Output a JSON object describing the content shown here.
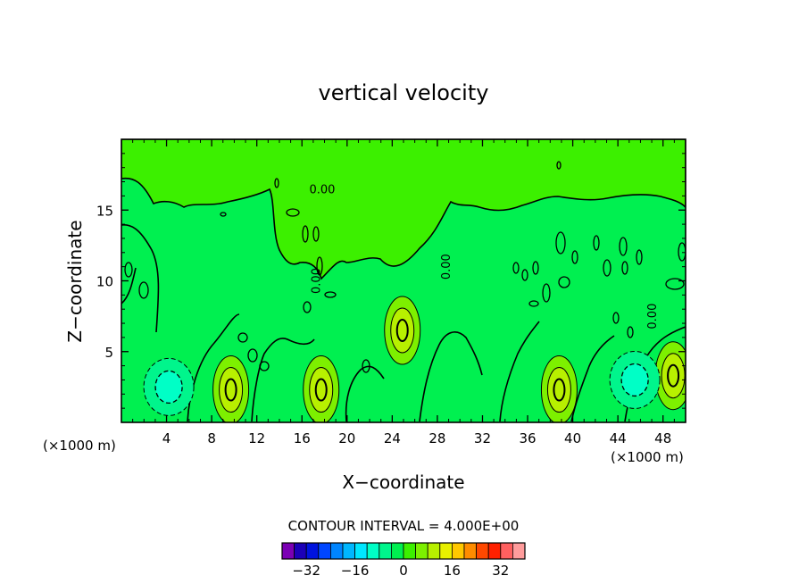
{
  "chart_data": {
    "type": "contour",
    "title": "vertical velocity",
    "xlabel": "X−coordinate",
    "ylabel": "Z−coordinate",
    "x_unit_left": "(×1000 m)",
    "x_unit_right": "(×1000 m)",
    "xlim": [
      0,
      50
    ],
    "ylim": [
      0,
      20
    ],
    "x_ticks": [
      4,
      8,
      12,
      16,
      20,
      24,
      28,
      32,
      36,
      40,
      44,
      48
    ],
    "x_tick_labels": [
      "4",
      "8",
      "12",
      "16",
      "20",
      "24",
      "28",
      "32",
      "36",
      "40",
      "44",
      "48"
    ],
    "y_ticks": [
      5,
      10,
      15
    ],
    "y_tick_labels": [
      "5",
      "10",
      "15"
    ],
    "contour_labels": [
      {
        "text": "0.00",
        "x": 17.8,
        "z": 16.5
      },
      {
        "text": "0.00",
        "x": 28.7,
        "z": 11.0
      },
      {
        "text": "0.00",
        "x": 17.2,
        "z": 10.0
      },
      {
        "text": "0.00",
        "x": 47.0,
        "z": 7.5
      }
    ],
    "contour_interval_text": "CONTOUR INTERVAL = 4.000E+00",
    "colorbar": {
      "levels": [
        -36,
        -32,
        -28,
        -24,
        -20,
        -16,
        -12,
        -8,
        -4,
        0,
        4,
        8,
        12,
        16,
        20,
        24,
        28,
        32,
        36
      ],
      "colors": [
        "#7b00b4",
        "#1c00b8",
        "#0013df",
        "#0046ff",
        "#0085ff",
        "#00b7ff",
        "#00e7ff",
        "#00ffc6",
        "#00f58c",
        "#00f050",
        "#3cf000",
        "#7df000",
        "#b8f000",
        "#e8f000",
        "#ffc800",
        "#ff8c00",
        "#ff4800",
        "#ff2000",
        "#ff6060",
        "#ff9c9c"
      ],
      "tick_values": [
        -32,
        -16,
        0,
        16,
        32
      ],
      "tick_labels": [
        "−32",
        "−16",
        "0",
        "16",
        "32"
      ]
    },
    "fields": {
      "background_color": "#00f050",
      "upper_region_color": "#3cf000",
      "updraft_colors": [
        "#7df000",
        "#b8f000"
      ],
      "downdraft_colors": [
        "#00f58c",
        "#00ffc6"
      ]
    },
    "updraft_cores": [
      {
        "x": 9.7,
        "z": 2.3,
        "peak": 12
      },
      {
        "x": 17.7,
        "z": 2.3,
        "peak": 12
      },
      {
        "x": 24.9,
        "z": 6.5,
        "peak": 12
      },
      {
        "x": 38.8,
        "z": 2.3,
        "peak": 12
      },
      {
        "x": 48.9,
        "z": 3.3,
        "peak": 12
      }
    ],
    "downdraft_cores": [
      {
        "x": 4.2,
        "z": 2.5,
        "trough": -8
      },
      {
        "x": 45.5,
        "z": 3.0,
        "trough": -8
      }
    ]
  }
}
